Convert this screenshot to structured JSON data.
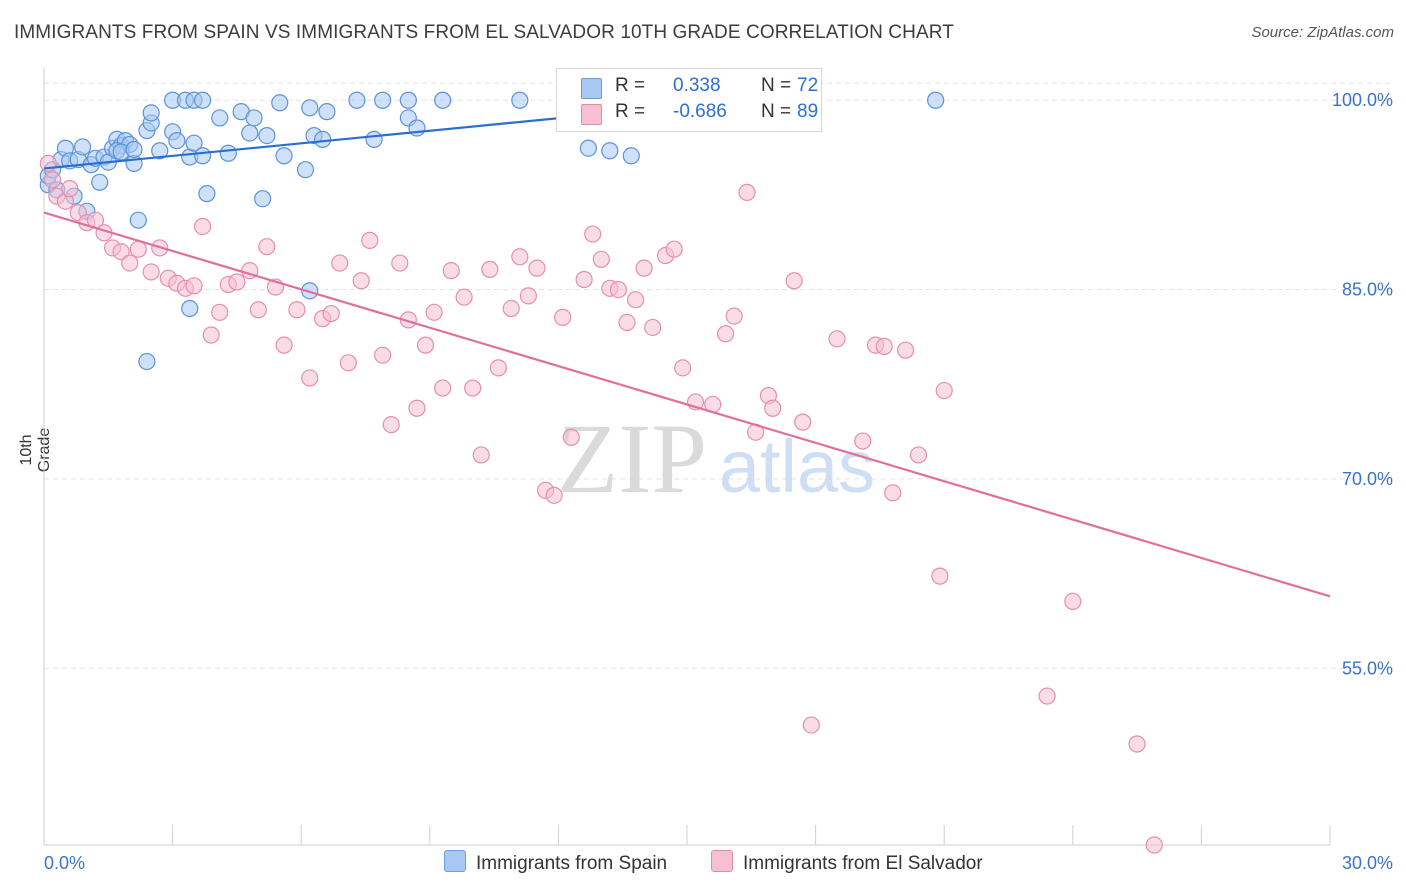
{
  "title": "IMMIGRANTS FROM SPAIN VS IMMIGRANTS FROM EL SALVADOR 10TH GRADE CORRELATION CHART",
  "source": "Source: ZipAtlas.com",
  "watermark": {
    "zip": "ZIP",
    "atlas": "atlas"
  },
  "legend": {
    "rows": [
      {
        "r_label": "R =",
        "r_value": " 0.338",
        "n_label": "N =",
        "n_value": "72",
        "color": "#a7c8f2",
        "border": "#6a9fdf"
      },
      {
        "r_label": "R =",
        "r_value": "-0.686",
        "n_label": "N = ",
        "n_value": "89",
        "color": "#f6c0d2",
        "border": "#e48aa9"
      }
    ]
  },
  "bottom_legend": {
    "spain": "Immigrants from Spain",
    "el_salvador": "Immigrants from El Salvador"
  },
  "chart_data": {
    "type": "scatter",
    "title": "IMMIGRANTS FROM SPAIN VS IMMIGRANTS FROM EL SALVADOR 10TH GRADE CORRELATION CHART",
    "xlabel": "",
    "ylabel": "10th Grade",
    "xlim": [
      0,
      30
    ],
    "ylim": [
      41,
      102
    ],
    "x_tick_labels": [
      "0.0%",
      "30.0%"
    ],
    "y_ticks": [
      55,
      70,
      85,
      100
    ],
    "y_tick_labels": [
      "55.0%",
      "70.0%",
      "85.0%",
      "100.0%"
    ],
    "grid": true,
    "legend_placement": "top-center",
    "colors": {
      "spain_fill": "#a7c8f2",
      "spain_stroke": "#5b93d9",
      "spain_line": "#2a6fcf",
      "salvador_fill": "#f6c0d2",
      "salvador_stroke": "#e58fae",
      "salvador_line": "#e0709a"
    },
    "series": [
      {
        "name": "Immigrants from Spain",
        "trend": {
          "x": [
            0,
            16.6
          ],
          "y": [
            94.6,
            100.1
          ]
        },
        "points": [
          [
            0.1,
            93.3
          ],
          [
            0.1,
            94.0
          ],
          [
            0.2,
            94.5
          ],
          [
            0.3,
            92.9
          ],
          [
            0.4,
            95.3
          ],
          [
            0.5,
            96.2
          ],
          [
            0.6,
            95.2
          ],
          [
            0.7,
            92.4
          ],
          [
            0.8,
            95.3
          ],
          [
            0.9,
            96.3
          ],
          [
            1.0,
            91.2
          ],
          [
            1.1,
            94.9
          ],
          [
            1.2,
            95.4
          ],
          [
            1.3,
            93.5
          ],
          [
            1.4,
            95.5
          ],
          [
            1.5,
            95.1
          ],
          [
            1.6,
            96.2
          ],
          [
            1.7,
            96.9
          ],
          [
            1.8,
            96.4
          ],
          [
            1.9,
            96.8
          ],
          [
            2.0,
            96.5
          ],
          [
            2.1,
            95.0
          ],
          [
            1.7,
            96.0
          ],
          [
            1.8,
            95.9
          ],
          [
            2.1,
            96.1
          ],
          [
            2.2,
            90.5
          ],
          [
            2.4,
            97.6
          ],
          [
            2.5,
            98.2
          ],
          [
            2.5,
            99.0
          ],
          [
            2.7,
            96.0
          ],
          [
            3.0,
            100.0
          ],
          [
            3.3,
            100.0
          ],
          [
            3.5,
            100.0
          ],
          [
            3.7,
            100.0
          ],
          [
            3.0,
            97.5
          ],
          [
            3.1,
            96.8
          ],
          [
            3.4,
            95.5
          ],
          [
            3.5,
            96.6
          ],
          [
            3.7,
            95.6
          ],
          [
            2.4,
            79.3
          ],
          [
            3.4,
            83.5
          ],
          [
            4.1,
            98.6
          ],
          [
            4.3,
            95.8
          ],
          [
            4.6,
            99.1
          ],
          [
            4.8,
            97.4
          ],
          [
            4.9,
            98.6
          ],
          [
            5.1,
            92.2
          ],
          [
            5.5,
            99.8
          ],
          [
            5.6,
            95.6
          ],
          [
            6.2,
            99.4
          ],
          [
            6.3,
            97.2
          ],
          [
            6.6,
            99.1
          ],
          [
            5.2,
            97.2
          ],
          [
            6.5,
            96.9
          ],
          [
            7.3,
            100.0
          ],
          [
            7.7,
            96.9
          ],
          [
            7.9,
            100.0
          ],
          [
            8.5,
            100.0
          ],
          [
            8.5,
            98.6
          ],
          [
            8.7,
            97.8
          ],
          [
            9.3,
            100.0
          ],
          [
            11.1,
            100.0
          ],
          [
            12.4,
            100.0
          ],
          [
            13.2,
            96.0
          ],
          [
            12.7,
            96.2
          ],
          [
            13.7,
            95.6
          ],
          [
            14.4,
            100.0
          ],
          [
            16.6,
            100.0
          ],
          [
            20.8,
            100.0
          ],
          [
            6.2,
            84.9
          ],
          [
            6.1,
            94.5
          ],
          [
            3.8,
            92.6
          ]
        ]
      },
      {
        "name": "Immigrants from El Salvador",
        "trend": {
          "x": [
            0,
            30
          ],
          "y": [
            91.1,
            60.7
          ]
        },
        "points": [
          [
            0.1,
            95.0
          ],
          [
            0.2,
            93.7
          ],
          [
            0.3,
            92.4
          ],
          [
            0.5,
            92.0
          ],
          [
            0.6,
            93.0
          ],
          [
            0.8,
            91.1
          ],
          [
            1.0,
            90.3
          ],
          [
            1.2,
            90.5
          ],
          [
            1.4,
            89.5
          ],
          [
            1.6,
            88.3
          ],
          [
            1.8,
            88.0
          ],
          [
            2.0,
            87.1
          ],
          [
            2.2,
            88.2
          ],
          [
            2.5,
            86.4
          ],
          [
            2.7,
            88.3
          ],
          [
            2.9,
            85.9
          ],
          [
            3.1,
            85.5
          ],
          [
            3.3,
            85.1
          ],
          [
            3.5,
            85.3
          ],
          [
            3.7,
            90.0
          ],
          [
            3.9,
            81.4
          ],
          [
            4.1,
            83.2
          ],
          [
            4.3,
            85.4
          ],
          [
            4.5,
            85.6
          ],
          [
            4.8,
            86.5
          ],
          [
            5.0,
            83.4
          ],
          [
            5.2,
            88.4
          ],
          [
            5.4,
            85.2
          ],
          [
            5.6,
            80.6
          ],
          [
            5.9,
            83.4
          ],
          [
            6.2,
            78.0
          ],
          [
            6.5,
            82.7
          ],
          [
            6.7,
            83.1
          ],
          [
            6.9,
            87.1
          ],
          [
            7.1,
            79.2
          ],
          [
            7.4,
            85.7
          ],
          [
            7.6,
            88.9
          ],
          [
            7.9,
            79.8
          ],
          [
            8.1,
            74.3
          ],
          [
            8.3,
            87.1
          ],
          [
            8.5,
            82.6
          ],
          [
            8.7,
            75.6
          ],
          [
            8.9,
            80.6
          ],
          [
            9.1,
            83.2
          ],
          [
            9.3,
            77.2
          ],
          [
            9.5,
            86.5
          ],
          [
            9.8,
            84.4
          ],
          [
            10.0,
            77.2
          ],
          [
            10.2,
            71.9
          ],
          [
            10.4,
            86.6
          ],
          [
            10.6,
            78.8
          ],
          [
            10.9,
            83.5
          ],
          [
            11.1,
            87.6
          ],
          [
            11.3,
            84.5
          ],
          [
            11.5,
            86.7
          ],
          [
            11.7,
            69.1
          ],
          [
            11.9,
            68.7
          ],
          [
            12.1,
            82.8
          ],
          [
            12.3,
            73.3
          ],
          [
            12.6,
            85.8
          ],
          [
            12.8,
            89.4
          ],
          [
            13.0,
            87.4
          ],
          [
            13.2,
            85.1
          ],
          [
            13.4,
            85.0
          ],
          [
            13.6,
            82.4
          ],
          [
            13.8,
            84.2
          ],
          [
            14.0,
            86.7
          ],
          [
            14.2,
            82.0
          ],
          [
            14.5,
            87.7
          ],
          [
            14.7,
            88.2
          ],
          [
            14.9,
            78.8
          ],
          [
            15.2,
            76.1
          ],
          [
            15.6,
            75.9
          ],
          [
            15.9,
            81.5
          ],
          [
            16.1,
            82.9
          ],
          [
            16.4,
            92.7
          ],
          [
            16.6,
            73.7
          ],
          [
            16.9,
            76.6
          ],
          [
            17.0,
            75.6
          ],
          [
            17.5,
            85.7
          ],
          [
            17.7,
            74.5
          ],
          [
            18.5,
            81.1
          ],
          [
            19.1,
            73.0
          ],
          [
            19.4,
            80.6
          ],
          [
            19.6,
            80.5
          ],
          [
            19.8,
            68.9
          ],
          [
            20.1,
            80.2
          ],
          [
            20.4,
            71.9
          ],
          [
            20.9,
            62.3
          ]
        ],
        "extra_points": [
          [
            21.0,
            77.0
          ],
          [
            24.0,
            60.3
          ],
          [
            23.4,
            52.8
          ],
          [
            17.9,
            50.5
          ],
          [
            25.5,
            49.0
          ],
          [
            25.9,
            41.0
          ]
        ]
      }
    ]
  }
}
